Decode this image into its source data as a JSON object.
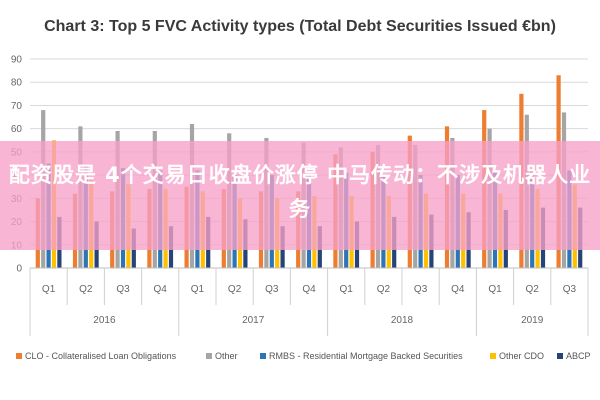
{
  "chart_data": {
    "type": "bar",
    "title": "Chart 3: Top 5 FVC Activity types (Total Debt Securities Issued €bn)",
    "ylim": [
      0,
      90
    ],
    "yticks": [
      0,
      10,
      20,
      30,
      40,
      50,
      60,
      70,
      80,
      90
    ],
    "categories": [
      "Q1",
      "Q2",
      "Q3",
      "Q4",
      "Q1",
      "Q2",
      "Q3",
      "Q4",
      "Q1",
      "Q2",
      "Q3",
      "Q4",
      "Q1",
      "Q2",
      "Q3"
    ],
    "years": [
      {
        "label": "2016",
        "quarters": 4
      },
      {
        "label": "2017",
        "quarters": 4
      },
      {
        "label": "2018",
        "quarters": 4
      },
      {
        "label": "2019",
        "quarters": 3
      }
    ],
    "series": [
      {
        "name": "CLO - Collateralised Loan Obligations",
        "color": "#ed7d31",
        "values": [
          30,
          32,
          33,
          34,
          35,
          34,
          33,
          33,
          49,
          50,
          57,
          61,
          68,
          75,
          83
        ]
      },
      {
        "name": "Other",
        "color": "#a5a5a5",
        "values": [
          68,
          61,
          59,
          59,
          62,
          58,
          56,
          54,
          52,
          53,
          53,
          56,
          60,
          66,
          67
        ]
      },
      {
        "name": "RMBS - Residential Mortgage Backed Securities",
        "color": "#2e75b6",
        "values": [
          45,
          44,
          43,
          42,
          42,
          40,
          40,
          40,
          41,
          40,
          40,
          40,
          41,
          42,
          42
        ]
      },
      {
        "name": "Other CDO",
        "color": "#ffc000",
        "values": [
          55,
          38,
          36,
          34,
          33,
          30,
          30,
          31,
          31,
          31,
          32,
          32,
          32,
          34,
          36
        ]
      },
      {
        "name": "ABCP",
        "color": "#264478",
        "values": [
          22,
          20,
          17,
          18,
          22,
          21,
          18,
          18,
          20,
          22,
          23,
          24,
          25,
          26,
          26
        ]
      }
    ]
  },
  "overlay": {
    "text": "配资股是 4个交易日收盘价涨停 中马传动：不涉及机器人业务"
  }
}
